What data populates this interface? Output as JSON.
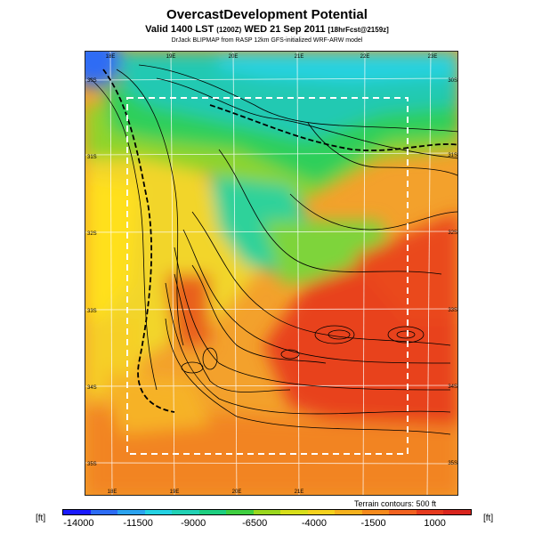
{
  "header": {
    "title": "OvercastDevelopment Potential",
    "valid": "Valid 1400 LST",
    "valid_utc": "(1200Z)",
    "date": "WED 21 Sep 2011",
    "forecast": "[18hrFcst@2159z]",
    "credit": "DrJack BLIPMAP from RASP 12km GFS-initialized WRF-ARW model"
  },
  "map": {
    "lon_labels": [
      "18E",
      "19E",
      "20E",
      "21E",
      "22E",
      "23E"
    ],
    "lat_labels": [
      "30S",
      "31S",
      "32S",
      "33S",
      "34S",
      "35S"
    ],
    "terrain_note": "Terrain contours: 500 ft"
  },
  "colorbar": {
    "unit": "[ft]",
    "labels": [
      "-14000",
      "-11500",
      "-9000",
      "-6500",
      "-4000",
      "-1500",
      "1000"
    ],
    "colors": [
      "#1a1aff",
      "#2d6cf5",
      "#2ba3ef",
      "#25d2e3",
      "#22d2b5",
      "#1ecf80",
      "#3fcf40",
      "#9ad71e",
      "#d8df1a",
      "#f5d21e",
      "#f6b21e",
      "#f58a1c",
      "#f26220",
      "#e63a1e",
      "#d9251e"
    ]
  }
}
